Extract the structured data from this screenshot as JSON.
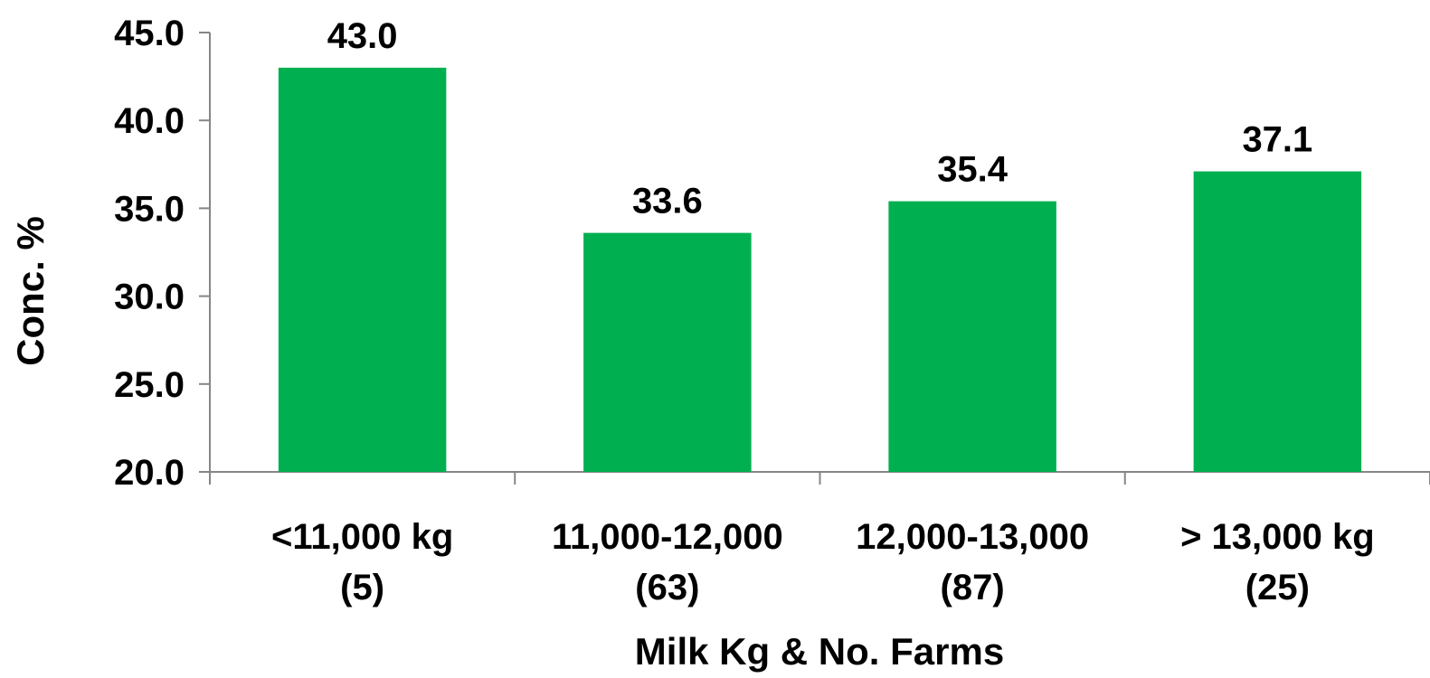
{
  "chart_data": {
    "type": "bar",
    "title": "",
    "xlabel": "Milk Kg & No. Farms",
    "ylabel": "Conc. %",
    "categories": [
      [
        "<11,000 kg",
        "(5)"
      ],
      [
        "11,000-12,000",
        "(63)"
      ],
      [
        "12,000-13,000",
        "(87)"
      ],
      [
        "> 13,000 kg",
        "(25)"
      ]
    ],
    "values": [
      43.0,
      33.6,
      35.4,
      37.1
    ],
    "value_labels": [
      "43.0",
      "33.6",
      "35.4",
      "37.1"
    ],
    "ylim": [
      20.0,
      45.0
    ],
    "yticks": [
      "20.0",
      "25.0",
      "30.0",
      "35.0",
      "40.0",
      "45.0"
    ],
    "grid": false,
    "legend": "none",
    "bar_color": "#00B050",
    "axis_color": "#868686"
  }
}
